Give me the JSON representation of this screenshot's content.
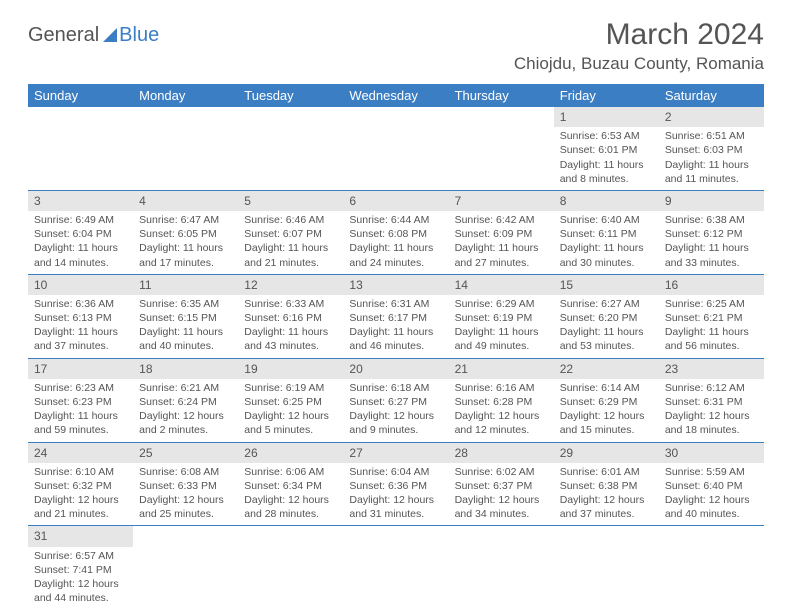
{
  "logo": {
    "part1": "General",
    "part2": "Blue"
  },
  "title": "March 2024",
  "location": "Chiojdu, Buzau County, Romania",
  "colors": {
    "accent": "#3c7ec4",
    "header_bg": "#3c7ec4",
    "daynum_bg": "#e6e6e6",
    "text": "#555555",
    "bg": "#ffffff"
  },
  "day_headers": [
    "Sunday",
    "Monday",
    "Tuesday",
    "Wednesday",
    "Thursday",
    "Friday",
    "Saturday"
  ],
  "weeks": [
    [
      null,
      null,
      null,
      null,
      null,
      {
        "n": "1",
        "sr": "Sunrise: 6:53 AM",
        "ss": "Sunset: 6:01 PM",
        "d1": "Daylight: 11 hours",
        "d2": "and 8 minutes."
      },
      {
        "n": "2",
        "sr": "Sunrise: 6:51 AM",
        "ss": "Sunset: 6:03 PM",
        "d1": "Daylight: 11 hours",
        "d2": "and 11 minutes."
      }
    ],
    [
      {
        "n": "3",
        "sr": "Sunrise: 6:49 AM",
        "ss": "Sunset: 6:04 PM",
        "d1": "Daylight: 11 hours",
        "d2": "and 14 minutes."
      },
      {
        "n": "4",
        "sr": "Sunrise: 6:47 AM",
        "ss": "Sunset: 6:05 PM",
        "d1": "Daylight: 11 hours",
        "d2": "and 17 minutes."
      },
      {
        "n": "5",
        "sr": "Sunrise: 6:46 AM",
        "ss": "Sunset: 6:07 PM",
        "d1": "Daylight: 11 hours",
        "d2": "and 21 minutes."
      },
      {
        "n": "6",
        "sr": "Sunrise: 6:44 AM",
        "ss": "Sunset: 6:08 PM",
        "d1": "Daylight: 11 hours",
        "d2": "and 24 minutes."
      },
      {
        "n": "7",
        "sr": "Sunrise: 6:42 AM",
        "ss": "Sunset: 6:09 PM",
        "d1": "Daylight: 11 hours",
        "d2": "and 27 minutes."
      },
      {
        "n": "8",
        "sr": "Sunrise: 6:40 AM",
        "ss": "Sunset: 6:11 PM",
        "d1": "Daylight: 11 hours",
        "d2": "and 30 minutes."
      },
      {
        "n": "9",
        "sr": "Sunrise: 6:38 AM",
        "ss": "Sunset: 6:12 PM",
        "d1": "Daylight: 11 hours",
        "d2": "and 33 minutes."
      }
    ],
    [
      {
        "n": "10",
        "sr": "Sunrise: 6:36 AM",
        "ss": "Sunset: 6:13 PM",
        "d1": "Daylight: 11 hours",
        "d2": "and 37 minutes."
      },
      {
        "n": "11",
        "sr": "Sunrise: 6:35 AM",
        "ss": "Sunset: 6:15 PM",
        "d1": "Daylight: 11 hours",
        "d2": "and 40 minutes."
      },
      {
        "n": "12",
        "sr": "Sunrise: 6:33 AM",
        "ss": "Sunset: 6:16 PM",
        "d1": "Daylight: 11 hours",
        "d2": "and 43 minutes."
      },
      {
        "n": "13",
        "sr": "Sunrise: 6:31 AM",
        "ss": "Sunset: 6:17 PM",
        "d1": "Daylight: 11 hours",
        "d2": "and 46 minutes."
      },
      {
        "n": "14",
        "sr": "Sunrise: 6:29 AM",
        "ss": "Sunset: 6:19 PM",
        "d1": "Daylight: 11 hours",
        "d2": "and 49 minutes."
      },
      {
        "n": "15",
        "sr": "Sunrise: 6:27 AM",
        "ss": "Sunset: 6:20 PM",
        "d1": "Daylight: 11 hours",
        "d2": "and 53 minutes."
      },
      {
        "n": "16",
        "sr": "Sunrise: 6:25 AM",
        "ss": "Sunset: 6:21 PM",
        "d1": "Daylight: 11 hours",
        "d2": "and 56 minutes."
      }
    ],
    [
      {
        "n": "17",
        "sr": "Sunrise: 6:23 AM",
        "ss": "Sunset: 6:23 PM",
        "d1": "Daylight: 11 hours",
        "d2": "and 59 minutes."
      },
      {
        "n": "18",
        "sr": "Sunrise: 6:21 AM",
        "ss": "Sunset: 6:24 PM",
        "d1": "Daylight: 12 hours",
        "d2": "and 2 minutes."
      },
      {
        "n": "19",
        "sr": "Sunrise: 6:19 AM",
        "ss": "Sunset: 6:25 PM",
        "d1": "Daylight: 12 hours",
        "d2": "and 5 minutes."
      },
      {
        "n": "20",
        "sr": "Sunrise: 6:18 AM",
        "ss": "Sunset: 6:27 PM",
        "d1": "Daylight: 12 hours",
        "d2": "and 9 minutes."
      },
      {
        "n": "21",
        "sr": "Sunrise: 6:16 AM",
        "ss": "Sunset: 6:28 PM",
        "d1": "Daylight: 12 hours",
        "d2": "and 12 minutes."
      },
      {
        "n": "22",
        "sr": "Sunrise: 6:14 AM",
        "ss": "Sunset: 6:29 PM",
        "d1": "Daylight: 12 hours",
        "d2": "and 15 minutes."
      },
      {
        "n": "23",
        "sr": "Sunrise: 6:12 AM",
        "ss": "Sunset: 6:31 PM",
        "d1": "Daylight: 12 hours",
        "d2": "and 18 minutes."
      }
    ],
    [
      {
        "n": "24",
        "sr": "Sunrise: 6:10 AM",
        "ss": "Sunset: 6:32 PM",
        "d1": "Daylight: 12 hours",
        "d2": "and 21 minutes."
      },
      {
        "n": "25",
        "sr": "Sunrise: 6:08 AM",
        "ss": "Sunset: 6:33 PM",
        "d1": "Daylight: 12 hours",
        "d2": "and 25 minutes."
      },
      {
        "n": "26",
        "sr": "Sunrise: 6:06 AM",
        "ss": "Sunset: 6:34 PM",
        "d1": "Daylight: 12 hours",
        "d2": "and 28 minutes."
      },
      {
        "n": "27",
        "sr": "Sunrise: 6:04 AM",
        "ss": "Sunset: 6:36 PM",
        "d1": "Daylight: 12 hours",
        "d2": "and 31 minutes."
      },
      {
        "n": "28",
        "sr": "Sunrise: 6:02 AM",
        "ss": "Sunset: 6:37 PM",
        "d1": "Daylight: 12 hours",
        "d2": "and 34 minutes."
      },
      {
        "n": "29",
        "sr": "Sunrise: 6:01 AM",
        "ss": "Sunset: 6:38 PM",
        "d1": "Daylight: 12 hours",
        "d2": "and 37 minutes."
      },
      {
        "n": "30",
        "sr": "Sunrise: 5:59 AM",
        "ss": "Sunset: 6:40 PM",
        "d1": "Daylight: 12 hours",
        "d2": "and 40 minutes."
      }
    ],
    [
      {
        "n": "31",
        "sr": "Sunrise: 6:57 AM",
        "ss": "Sunset: 7:41 PM",
        "d1": "Daylight: 12 hours",
        "d2": "and 44 minutes."
      },
      null,
      null,
      null,
      null,
      null,
      null
    ]
  ]
}
